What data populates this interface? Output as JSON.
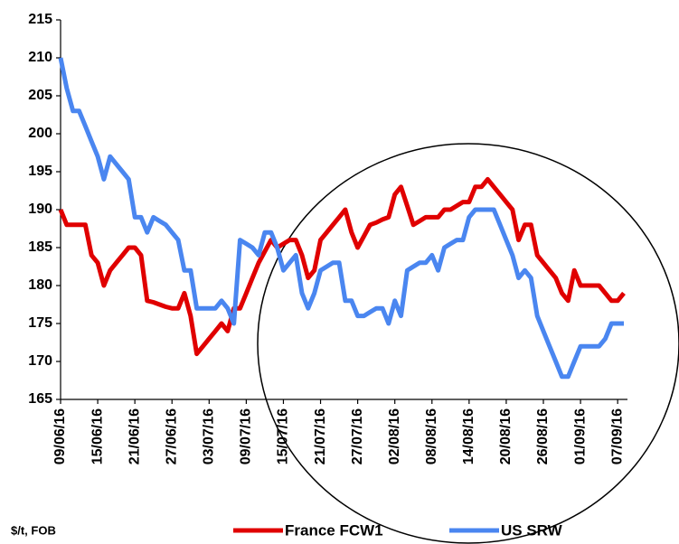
{
  "chart_data": {
    "type": "line",
    "annotation": "$/t, FOB",
    "categories": [
      "09/06/16",
      null,
      null,
      null,
      null,
      null,
      "15/06/16",
      null,
      null,
      null,
      null,
      null,
      "21/06/16",
      null,
      null,
      null,
      null,
      null,
      "27/06/16",
      null,
      null,
      null,
      null,
      null,
      "03/07/16",
      null,
      null,
      null,
      null,
      null,
      "09/07/16",
      null,
      null,
      null,
      null,
      null,
      "15/07/16",
      null,
      null,
      null,
      null,
      null,
      "21/07/16",
      null,
      null,
      null,
      null,
      null,
      "27/07/16",
      null,
      null,
      null,
      null,
      null,
      "02/08/16",
      null,
      null,
      null,
      null,
      null,
      "08/08/16",
      null,
      null,
      null,
      null,
      null,
      "14/08/16",
      null,
      null,
      null,
      null,
      null,
      "20/08/16",
      null,
      null,
      null,
      null,
      null,
      "26/08/16",
      null,
      null,
      null,
      null,
      null,
      "01/09/16",
      null,
      null,
      null,
      null,
      null,
      "07/09/16",
      null
    ],
    "series": [
      {
        "name": "France FCW1",
        "color": "#e00000",
        "values": [
          190,
          188,
          188,
          188,
          188,
          184,
          183,
          180,
          182,
          183,
          184,
          185,
          185,
          184,
          178,
          177.8,
          177.5,
          177.2,
          177,
          177,
          179,
          176,
          171,
          172,
          173,
          174,
          175,
          174,
          177,
          177,
          179,
          181,
          183,
          184.5,
          186,
          185,
          185.5,
          186,
          186,
          184,
          181,
          182,
          186,
          187,
          188,
          189,
          190,
          187,
          185,
          186.5,
          188,
          188.3,
          188.7,
          189,
          192,
          193,
          190.5,
          188,
          188.5,
          189,
          189,
          189,
          190,
          190,
          190.5,
          191,
          191,
          193,
          193,
          194,
          193,
          192,
          191,
          190,
          186,
          188,
          188,
          184,
          183,
          182,
          181,
          179,
          178,
          182,
          180,
          180,
          180,
          180,
          179,
          178,
          178,
          179
        ]
      },
      {
        "name": "US SRW",
        "color": "#4a86f0",
        "values": [
          210,
          206,
          203,
          203,
          201,
          199,
          197,
          194,
          197,
          196,
          195,
          194,
          189,
          189,
          187,
          189,
          188.5,
          188,
          187,
          186,
          182,
          182,
          177,
          177,
          177,
          177,
          178,
          177,
          175,
          186,
          185.5,
          185,
          184,
          187,
          187,
          185,
          182,
          183,
          184,
          179,
          177,
          179,
          182,
          182.5,
          183,
          183,
          178,
          178,
          176,
          176,
          176.5,
          177,
          177,
          175,
          178,
          176,
          182,
          182.5,
          183,
          183,
          184,
          182,
          185,
          185.5,
          186,
          186,
          189,
          190,
          190,
          190,
          190,
          188,
          186,
          184,
          181,
          182,
          181,
          176,
          174,
          172,
          170,
          168,
          168,
          170,
          172,
          172,
          172,
          172,
          173,
          175,
          175,
          175
        ]
      }
    ],
    "ylim": [
      165,
      215
    ],
    "yticks": [
      165,
      170,
      175,
      180,
      185,
      190,
      195,
      200,
      205,
      210,
      215
    ],
    "grid": false,
    "legend": "bottom"
  }
}
